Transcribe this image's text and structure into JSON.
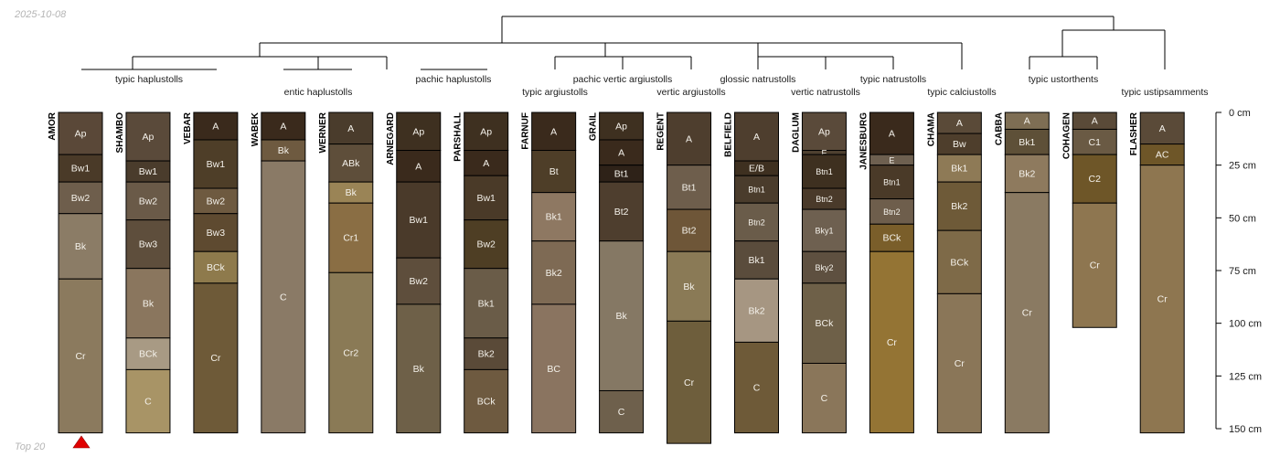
{
  "date": "2025-10-08",
  "footer": "Top 20",
  "depth_axis": {
    "max_cm": 150,
    "ticks": [
      0,
      25,
      50,
      75,
      100,
      125,
      150
    ],
    "unit": "cm"
  },
  "taxa": [
    "typic haplustolls",
    "entic haplustolls",
    "pachic haplustolls",
    "typic argiustolls",
    "pachic vertic argiustolls",
    "vertic argiustolls",
    "glossic natrustolls",
    "vertic natrustolls",
    "typic natrustolls",
    "typic calciustolls",
    "typic ustorthents",
    "typic ustipsamments"
  ],
  "profiles": [
    {
      "name": "AMOR",
      "horizons": [
        {
          "name": "Ap",
          "top": 0,
          "bottom": 20,
          "color": "#5a4838"
        },
        {
          "name": "Bw1",
          "top": 20,
          "bottom": 33,
          "color": "#4a3a28"
        },
        {
          "name": "Bw2",
          "top": 33,
          "bottom": 48,
          "color": "#6e5e4c"
        },
        {
          "name": "Bk",
          "top": 48,
          "bottom": 79,
          "color": "#8b7c66"
        },
        {
          "name": "Cr",
          "top": 79,
          "bottom": 152,
          "color": "#8b7a5e"
        }
      ]
    },
    {
      "name": "SHAMBO",
      "horizons": [
        {
          "name": "Ap",
          "top": 0,
          "bottom": 23,
          "color": "#5a4a3a"
        },
        {
          "name": "Bw1",
          "top": 23,
          "bottom": 33,
          "color": "#4a3c2c"
        },
        {
          "name": "Bw2",
          "top": 33,
          "bottom": 51,
          "color": "#6a5a48"
        },
        {
          "name": "Bw3",
          "top": 51,
          "bottom": 74,
          "color": "#5e4e3c"
        },
        {
          "name": "Bk",
          "top": 74,
          "bottom": 107,
          "color": "#8a765e"
        },
        {
          "name": "BCk",
          "top": 107,
          "bottom": 122,
          "color": "#a89a84"
        },
        {
          "name": "C",
          "top": 122,
          "bottom": 152,
          "color": "#a89466"
        }
      ]
    },
    {
      "name": "VEBAR",
      "horizons": [
        {
          "name": "A",
          "top": 0,
          "bottom": 13,
          "color": "#3a2a1c"
        },
        {
          "name": "Bw1",
          "top": 13,
          "bottom": 36,
          "color": "#4e3e28"
        },
        {
          "name": "Bw2",
          "top": 36,
          "bottom": 48,
          "color": "#6e5a40"
        },
        {
          "name": "Bw3",
          "top": 48,
          "bottom": 66,
          "color": "#5e4a30"
        },
        {
          "name": "BCk",
          "top": 66,
          "bottom": 81,
          "color": "#8e7a4c"
        },
        {
          "name": "Cr",
          "top": 81,
          "bottom": 152,
          "color": "#6e5a38"
        }
      ]
    },
    {
      "name": "WABEK",
      "horizons": [
        {
          "name": "A",
          "top": 0,
          "bottom": 13,
          "color": "#3a2a1c"
        },
        {
          "name": "Bk",
          "top": 13,
          "bottom": 23,
          "color": "#6e5a40"
        },
        {
          "name": "C",
          "top": 23,
          "bottom": 152,
          "color": "#8a7a66"
        }
      ]
    },
    {
      "name": "WERNER",
      "horizons": [
        {
          "name": "A",
          "top": 0,
          "bottom": 15,
          "color": "#4a3c2c"
        },
        {
          "name": "ABk",
          "top": 15,
          "bottom": 33,
          "color": "#5e4e3a"
        },
        {
          "name": "Bk",
          "top": 33,
          "bottom": 43,
          "color": "#9a8456"
        },
        {
          "name": "Cr1",
          "top": 43,
          "bottom": 76,
          "color": "#8a6e44"
        },
        {
          "name": "Cr2",
          "top": 76,
          "bottom": 152,
          "color": "#8a7a56"
        }
      ]
    },
    {
      "name": "ARNEGARD",
      "horizons": [
        {
          "name": "Ap",
          "top": 0,
          "bottom": 18,
          "color": "#3e3020"
        },
        {
          "name": "A",
          "top": 18,
          "bottom": 33,
          "color": "#3a2a1c"
        },
        {
          "name": "Bw1",
          "top": 33,
          "bottom": 69,
          "color": "#4a3a2a"
        },
        {
          "name": "Bw2",
          "top": 69,
          "bottom": 91,
          "color": "#5e4e3c"
        },
        {
          "name": "Bk",
          "top": 91,
          "bottom": 152,
          "color": "#6e6048"
        }
      ]
    },
    {
      "name": "PARSHALL",
      "horizons": [
        {
          "name": "Ap",
          "top": 0,
          "bottom": 18,
          "color": "#3e3020"
        },
        {
          "name": "A",
          "top": 18,
          "bottom": 30,
          "color": "#3a2a1c"
        },
        {
          "name": "Bw1",
          "top": 30,
          "bottom": 51,
          "color": "#4a3a28"
        },
        {
          "name": "Bw2",
          "top": 51,
          "bottom": 74,
          "color": "#4e3e24"
        },
        {
          "name": "Bk1",
          "top": 74,
          "bottom": 107,
          "color": "#6a5c48"
        },
        {
          "name": "Bk2",
          "top": 107,
          "bottom": 122,
          "color": "#5a4a38"
        },
        {
          "name": "BCk",
          "top": 122,
          "bottom": 152,
          "color": "#6e5a40"
        }
      ]
    },
    {
      "name": "FARNUF",
      "horizons": [
        {
          "name": "A",
          "top": 0,
          "bottom": 18,
          "color": "#3a2a1c"
        },
        {
          "name": "Bt",
          "top": 18,
          "bottom": 38,
          "color": "#4e3e28"
        },
        {
          "name": "Bk1",
          "top": 38,
          "bottom": 61,
          "color": "#8e7862"
        },
        {
          "name": "Bk2",
          "top": 61,
          "bottom": 91,
          "color": "#7e6a54"
        },
        {
          "name": "BC",
          "top": 91,
          "bottom": 152,
          "color": "#8a7460"
        }
      ]
    },
    {
      "name": "GRAIL",
      "horizons": [
        {
          "name": "Ap",
          "top": 0,
          "bottom": 13,
          "color": "#3e3020"
        },
        {
          "name": "A",
          "top": 13,
          "bottom": 25,
          "color": "#3a2a1c"
        },
        {
          "name": "Bt1",
          "top": 25,
          "bottom": 33,
          "color": "#2e2218"
        },
        {
          "name": "Bt2",
          "top": 33,
          "bottom": 61,
          "color": "#4e3e2e"
        },
        {
          "name": "Bk",
          "top": 61,
          "bottom": 132,
          "color": "#857864"
        },
        {
          "name": "C",
          "top": 132,
          "bottom": 152,
          "color": "#6e604c"
        }
      ]
    },
    {
      "name": "REGENT",
      "horizons": [
        {
          "name": "A",
          "top": 0,
          "bottom": 25,
          "color": "#4e3e2e"
        },
        {
          "name": "Bt1",
          "top": 25,
          "bottom": 46,
          "color": "#6e5e4c"
        },
        {
          "name": "Bt2",
          "top": 46,
          "bottom": 66,
          "color": "#6e5638"
        },
        {
          "name": "Bk",
          "top": 66,
          "bottom": 99,
          "color": "#8a7a56"
        },
        {
          "name": "Cr",
          "top": 99,
          "bottom": 157,
          "color": "#6e5e3c"
        }
      ]
    },
    {
      "name": "BELFIELD",
      "horizons": [
        {
          "name": "A",
          "top": 0,
          "bottom": 23,
          "color": "#4e3e2e"
        },
        {
          "name": "E/B",
          "top": 23,
          "bottom": 30,
          "color": "#3e3020"
        },
        {
          "name": "Btn1",
          "top": 30,
          "bottom": 43,
          "color": "#4a3c2c"
        },
        {
          "name": "Btn2",
          "top": 43,
          "bottom": 61,
          "color": "#6a5c4a"
        },
        {
          "name": "Bk1",
          "top": 61,
          "bottom": 79,
          "color": "#5a4c3c"
        },
        {
          "name": "Bk2",
          "top": 79,
          "bottom": 109,
          "color": "#a69682"
        },
        {
          "name": "C",
          "top": 109,
          "bottom": 152,
          "color": "#6e5a38"
        }
      ]
    },
    {
      "name": "DAGLUM",
      "horizons": [
        {
          "name": "Ap",
          "top": 0,
          "bottom": 18,
          "color": "#5a4a3a"
        },
        {
          "name": "E",
          "top": 18,
          "bottom": 20,
          "color": "#4e4030"
        },
        {
          "name": "Btn1",
          "top": 20,
          "bottom": 36,
          "color": "#3e3020"
        },
        {
          "name": "Btn2",
          "top": 36,
          "bottom": 46,
          "color": "#4a3a2a"
        },
        {
          "name": "Bky1",
          "top": 46,
          "bottom": 66,
          "color": "#6e6050"
        },
        {
          "name": "Bky2",
          "top": 66,
          "bottom": 81,
          "color": "#5e5040"
        },
        {
          "name": "BCk",
          "top": 81,
          "bottom": 119,
          "color": "#6e6048"
        },
        {
          "name": "C",
          "top": 119,
          "bottom": 152,
          "color": "#8a765a"
        }
      ]
    },
    {
      "name": "JANESBURG",
      "horizons": [
        {
          "name": "A",
          "top": 0,
          "bottom": 20,
          "color": "#3a2a1c"
        },
        {
          "name": "E",
          "top": 20,
          "bottom": 25,
          "color": "#6e6050"
        },
        {
          "name": "Btn1",
          "top": 25,
          "bottom": 41,
          "color": "#4a3a28"
        },
        {
          "name": "Btn2",
          "top": 41,
          "bottom": 53,
          "color": "#6e5e4c"
        },
        {
          "name": "BCk",
          "top": 53,
          "bottom": 66,
          "color": "#7a5e2a"
        },
        {
          "name": "Cr",
          "top": 66,
          "bottom": 152,
          "color": "#947434"
        }
      ]
    },
    {
      "name": "CHAMA",
      "horizons": [
        {
          "name": "A",
          "top": 0,
          "bottom": 10,
          "color": "#5a4a38"
        },
        {
          "name": "Bw",
          "top": 10,
          "bottom": 20,
          "color": "#4e3e2c"
        },
        {
          "name": "Bk1",
          "top": 20,
          "bottom": 33,
          "color": "#8e7a56"
        },
        {
          "name": "Bk2",
          "top": 33,
          "bottom": 56,
          "color": "#6e5a38"
        },
        {
          "name": "BCk",
          "top": 56,
          "bottom": 86,
          "color": "#7e6a48"
        },
        {
          "name": "Cr",
          "top": 86,
          "bottom": 152,
          "color": "#8a7658"
        }
      ]
    },
    {
      "name": "CABBA",
      "horizons": [
        {
          "name": "A",
          "top": 0,
          "bottom": 8,
          "color": "#7e6e54"
        },
        {
          "name": "Bk1",
          "top": 8,
          "bottom": 20,
          "color": "#5e5038"
        },
        {
          "name": "Bk2",
          "top": 20,
          "bottom": 38,
          "color": "#8e7a5e"
        },
        {
          "name": "Cr",
          "top": 38,
          "bottom": 152,
          "color": "#8a7a62"
        }
      ]
    },
    {
      "name": "COHAGEN",
      "horizons": [
        {
          "name": "A",
          "top": 0,
          "bottom": 8,
          "color": "#5a4a38"
        },
        {
          "name": "C1",
          "top": 8,
          "bottom": 20,
          "color": "#6a5a44"
        },
        {
          "name": "C2",
          "top": 20,
          "bottom": 43,
          "color": "#6e5628"
        },
        {
          "name": "Cr",
          "top": 43,
          "bottom": 102,
          "color": "#8e7650"
        }
      ]
    },
    {
      "name": "FLASHER",
      "horizons": [
        {
          "name": "A",
          "top": 0,
          "bottom": 15,
          "color": "#5a4a38"
        },
        {
          "name": "AC",
          "top": 15,
          "bottom": 25,
          "color": "#6e5628"
        },
        {
          "name": "Cr",
          "top": 25,
          "bottom": 152,
          "color": "#8e7650"
        }
      ]
    }
  ]
}
